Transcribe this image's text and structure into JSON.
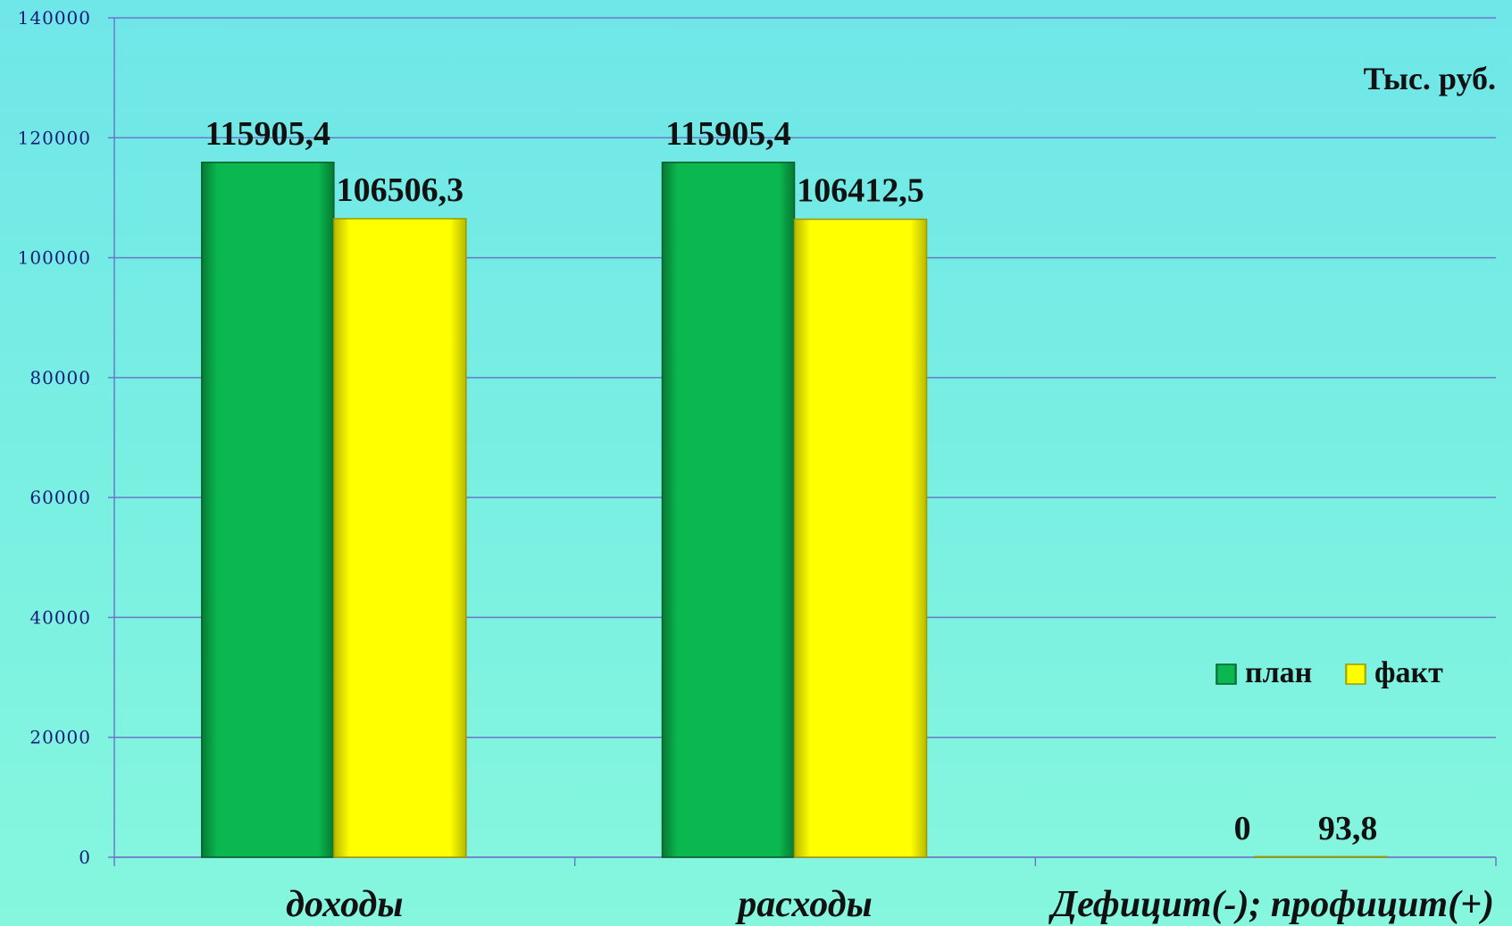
{
  "chart_data": {
    "type": "bar",
    "unit_label": "Тыс. руб.",
    "categories": [
      "доходы",
      "расходы",
      "Дефицит(-); профицит(+)"
    ],
    "series": [
      {
        "name": "план",
        "color": "#0bb84f",
        "values": [
          115905.4,
          115905.4,
          0
        ],
        "labels": [
          "115905,4",
          "115905,4",
          "0"
        ]
      },
      {
        "name": "факт",
        "color": "#ffff00",
        "values": [
          106506.3,
          106412.5,
          93.8
        ],
        "labels": [
          "106506,3",
          "106412,5",
          "93,8"
        ]
      }
    ],
    "ylim": [
      0,
      140000
    ],
    "yticks": [
      0,
      20000,
      40000,
      60000,
      80000,
      100000,
      120000,
      140000
    ],
    "grid": true,
    "legend_position": "right"
  }
}
